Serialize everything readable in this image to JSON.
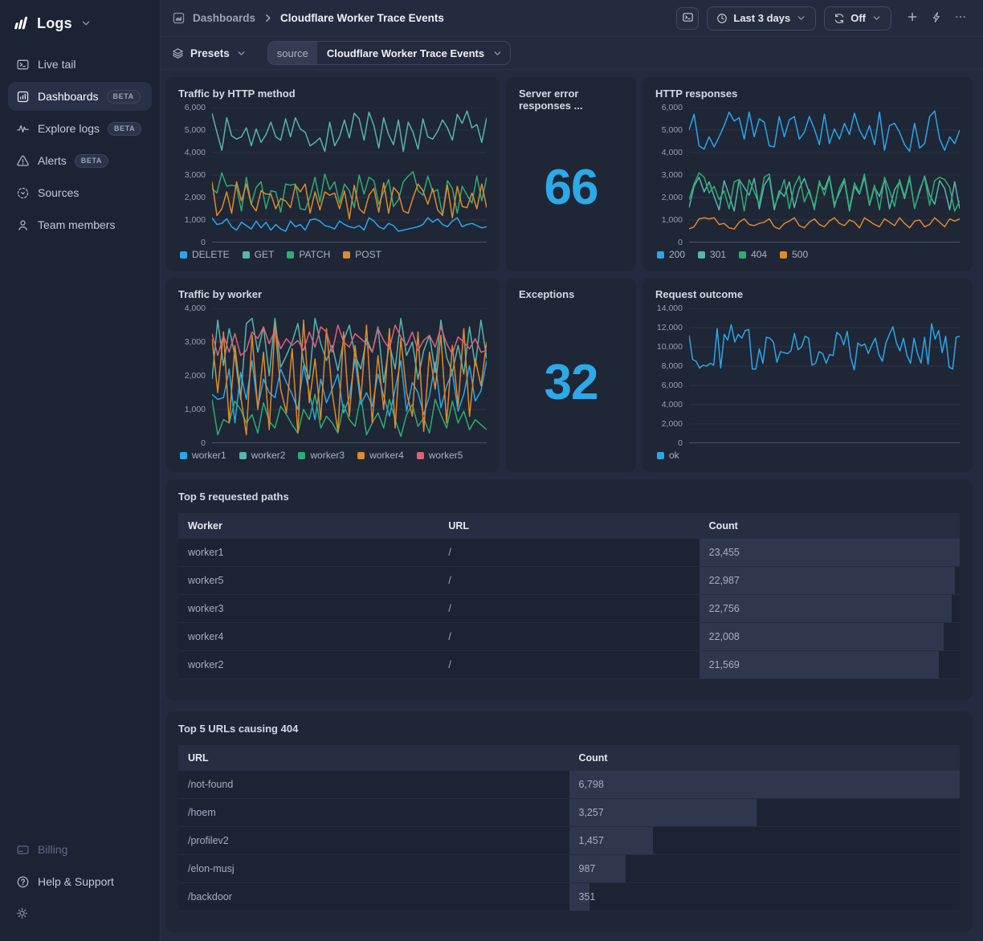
{
  "colors": {
    "accent": "#2da9e8",
    "series_blue": "#2aa7e8",
    "series_teal": "#57b5ac",
    "series_green": "#2eac72",
    "series_orange": "#dd8b2c",
    "series_pink": "#e06078"
  },
  "sidebar": {
    "logo": "Logs",
    "items": [
      {
        "label": "Live tail",
        "badge": ""
      },
      {
        "label": "Dashboards",
        "badge": "BETA"
      },
      {
        "label": "Explore logs",
        "badge": "BETA"
      },
      {
        "label": "Alerts",
        "badge": "BETA"
      },
      {
        "label": "Sources",
        "badge": ""
      },
      {
        "label": "Team members",
        "badge": ""
      }
    ],
    "footer": [
      {
        "label": "Billing"
      },
      {
        "label": "Help & Support"
      }
    ]
  },
  "topbar": {
    "breadcrumb_section": "Dashboards",
    "breadcrumb_page": "Cloudflare Worker Trace Events",
    "time_range": "Last 3 days",
    "refresh": "Off"
  },
  "filters": {
    "presets": "Presets",
    "source_label": "source",
    "source_value": "Cloudflare Worker Trace Events"
  },
  "chart_data": [
    {
      "id": "traffic-by-http-method",
      "title": "Traffic by HTTP method",
      "type": "line",
      "ylim": [
        0,
        6000
      ],
      "yticks": [
        0,
        1000,
        2000,
        3000,
        4000,
        5000,
        6000
      ],
      "series": [
        {
          "name": "DELETE",
          "color": "#2aa7e8",
          "values": [
            1100,
            800,
            850,
            1050,
            700,
            550,
            900,
            750,
            600,
            950,
            650,
            900,
            550,
            800,
            600,
            500,
            950,
            700,
            800,
            550,
            1000,
            1050,
            950,
            750,
            700,
            600,
            950,
            800,
            700,
            650,
            750,
            550,
            1100,
            950,
            700,
            600,
            850,
            750,
            500,
            550,
            600,
            650,
            700,
            800,
            1100,
            900,
            1050,
            800,
            700,
            950,
            1100,
            700,
            800,
            850,
            750,
            650,
            700
          ]
        },
        {
          "name": "GET",
          "color": "#57b5ac",
          "values": [
            5750,
            4900,
            4100,
            5550,
            4750,
            4600,
            4700,
            5100,
            4300,
            5050,
            4450,
            4800,
            5350,
            4700,
            4550,
            5500,
            4700,
            5550,
            5050,
            4900,
            4300,
            4450,
            4650,
            4050,
            5350,
            4300,
            4700,
            5450,
            4650,
            5750,
            5500,
            4550,
            5800,
            5200,
            4200,
            5550,
            4800,
            4350,
            5450,
            4050,
            5350,
            4900,
            4150,
            5500,
            4700,
            4600,
            4950,
            5450,
            5100,
            4550,
            5700,
            5300,
            5850,
            5100,
            5250,
            4450,
            5550
          ]
        },
        {
          "name": "PATCH",
          "color": "#2eac72",
          "values": [
            2400,
            2200,
            3100,
            2500,
            2550,
            2500,
            1400,
            2900,
            1700,
            2450,
            2700,
            1500,
            2300,
            2250,
            1350,
            2600,
            2550,
            2600,
            1500,
            1450,
            2050,
            2900,
            1800,
            3050,
            2350,
            2700,
            1750,
            2600,
            2300,
            1550,
            3000,
            2150,
            2900,
            2750,
            1700,
            2250,
            2800,
            1600,
            1900,
            2700,
            2950,
            3150,
            2300,
            2100,
            2950,
            2250,
            2350,
            1200,
            2750,
            2400,
            1300,
            2500,
            2100,
            1750,
            2950,
            1850,
            2900
          ]
        },
        {
          "name": "POST",
          "color": "#dd8b2c",
          "values": [
            2700,
            1200,
            1500,
            2250,
            1300,
            2700,
            1850,
            2600,
            1700,
            1400,
            2300,
            2150,
            2150,
            1500,
            1950,
            1850,
            1550,
            2550,
            2250,
            2600,
            1300,
            2250,
            1450,
            2250,
            2100,
            2200,
            1500,
            2300,
            1050,
            2550,
            1500,
            1300,
            2100,
            2400,
            1350,
            2650,
            1300,
            2450,
            2200,
            1400,
            1300,
            2000,
            2600,
            2300,
            1700,
            2400,
            1450,
            1200,
            2550,
            1100,
            2500,
            1600,
            1550,
            2200,
            1500,
            2600,
            1550
          ]
        }
      ]
    },
    {
      "id": "server-error-responses",
      "title": "Server error responses ...",
      "type": "stat",
      "value": "66"
    },
    {
      "id": "http-responses",
      "title": "HTTP responses",
      "type": "line",
      "ylim": [
        0,
        6000
      ],
      "yticks": [
        0,
        1000,
        2000,
        3000,
        4000,
        5000,
        6000
      ],
      "series": [
        {
          "name": "200",
          "color": "#2aa7e8",
          "values": [
            5000,
            5700,
            4300,
            4150,
            4700,
            4250,
            4700,
            5200,
            5800,
            5400,
            5550,
            4600,
            5800,
            4700,
            5500,
            5350,
            4300,
            4250,
            5600,
            4700,
            5450,
            5600,
            4600,
            4900,
            5600,
            5050,
            4350,
            5700,
            4400,
            5050,
            4600,
            5300,
            4800,
            5750,
            5000,
            4600,
            5200,
            4350,
            5800,
            4100,
            5200,
            5300,
            4900,
            4350,
            4050,
            5300,
            4200,
            4400,
            5600,
            5850,
            4600,
            4100,
            4700,
            4400,
            5000
          ]
        },
        {
          "name": "301",
          "color": "#57b5ac",
          "values": [
            1550,
            2500,
            2900,
            2250,
            2700,
            2050,
            1450,
            2750,
            2100,
            1400,
            2800,
            2450,
            2100,
            2850,
            1500,
            2550,
            2900,
            1450,
            2300,
            2050,
            2700,
            1550,
            2400,
            2850,
            2200,
            1600,
            2600,
            2350,
            2950,
            1700,
            2200,
            2750,
            1400,
            2500,
            2150,
            2900,
            1650,
            2450,
            2050,
            2800,
            1500,
            2350,
            2700,
            1950,
            2850,
            1550,
            2250,
            2950,
            2100,
            1700,
            2750,
            2400,
            1450,
            2700,
            1500
          ]
        },
        {
          "name": "404",
          "color": "#2eac72",
          "values": [
            1900,
            2600,
            3100,
            2900,
            2200,
            2500,
            1900,
            2300,
            1500,
            2700,
            2800,
            1400,
            2800,
            2250,
            1700,
            2900,
            3050,
            1600,
            2100,
            2800,
            1500,
            2500,
            2950,
            1800,
            2350,
            1450,
            2750,
            2100,
            2900,
            1550,
            2400,
            2850,
            1500,
            2650,
            2200,
            3050,
            1700,
            2550,
            1450,
            2900,
            2300,
            1600,
            2800,
            2050,
            2950,
            1500,
            2350,
            2900,
            1650,
            2750,
            2900,
            2800,
            2450,
            1400,
            1850
          ]
        },
        {
          "name": "500",
          "color": "#dd8b2c",
          "values": [
            600,
            700,
            1050,
            1100,
            1050,
            1100,
            800,
            850,
            650,
            600,
            900,
            1050,
            800,
            750,
            850,
            900,
            1050,
            700,
            600,
            850,
            950,
            1100,
            750,
            650,
            900,
            1050,
            800,
            700,
            950,
            1100,
            850,
            750,
            1000,
            900,
            650,
            1100,
            950,
            800,
            700,
            1050,
            900,
            750,
            1100,
            850,
            650,
            950,
            1000,
            700,
            800,
            1100,
            900,
            700,
            1050,
            950,
            1050
          ]
        }
      ]
    },
    {
      "id": "traffic-by-worker",
      "title": "Traffic by worker",
      "type": "line",
      "ylim": [
        0,
        4000
      ],
      "yticks": [
        0,
        1000,
        2000,
        3000,
        4000
      ],
      "series": [
        {
          "name": "worker1",
          "color": "#2aa7e8",
          "values": [
            1450,
            1300,
            1350,
            2200,
            600,
            2100,
            1300,
            2450,
            1050,
            1900,
            1500,
            1350,
            2200,
            1800,
            1450,
            1000,
            2300,
            1500,
            700,
            1900,
            1200,
            1600,
            2050,
            900,
            1350,
            2500,
            1150,
            1500,
            1100,
            2050,
            1400,
            800,
            1600,
            2450,
            950,
            1800,
            1500,
            850,
            1400,
            2400,
            1050,
            1700,
            2100,
            950,
            1450,
            2300,
            1250,
            1550,
            2450
          ]
        },
        {
          "name": "worker2",
          "color": "#57b5ac",
          "values": [
            1900,
            3650,
            2300,
            3400,
            2600,
            1300,
            3550,
            3700,
            2700,
            3450,
            2000,
            3700,
            2250,
            2600,
            3000,
            3550,
            2400,
            1900,
            3700,
            2950,
            2450,
            2900,
            2150,
            3050,
            3500,
            2600,
            2200,
            3100,
            2700,
            3450,
            1800,
            2950,
            2200,
            3700,
            2600,
            3000,
            1900,
            2750,
            3200,
            2100,
            3650,
            2550,
            2100,
            2900,
            2050,
            3450,
            2300,
            3650,
            2500
          ]
        },
        {
          "name": "worker3",
          "color": "#2eac72",
          "values": [
            1300,
            250,
            700,
            600,
            1250,
            1000,
            600,
            850,
            300,
            1200,
            650,
            450,
            1100,
            850,
            550,
            300,
            1000,
            700,
            1450,
            450,
            800,
            600,
            300,
            1150,
            700,
            500,
            1400,
            250,
            600,
            900,
            450,
            1300,
            700,
            200,
            850,
            1150,
            500,
            750,
            300,
            1300,
            850,
            450,
            1250,
            600,
            950,
            400,
            700,
            550,
            400
          ]
        },
        {
          "name": "worker4",
          "color": "#dd8b2c",
          "values": [
            3100,
            1500,
            3300,
            600,
            2900,
            1400,
            250,
            3200,
            1000,
            2700,
            400,
            3500,
            1600,
            900,
            2800,
            300,
            3650,
            1200,
            2500,
            700,
            3400,
            1500,
            350,
            3300,
            800,
            2900,
            1300,
            3500,
            600,
            2600,
            1000,
            3400,
            450,
            3100,
            1500,
            800,
            3300,
            350,
            2700,
            1600,
            3200,
            600,
            2900,
            1100,
            3400,
            800,
            2500,
            1700,
            3000
          ]
        },
        {
          "name": "worker5",
          "color": "#e06078",
          "values": [
            3250,
            2600,
            3200,
            2700,
            3250,
            2600,
            2750,
            3300,
            3100,
            3450,
            2950,
            3350,
            2800,
            3100,
            2900,
            3050,
            2750,
            3300,
            2850,
            3450,
            3300,
            2700,
            3500,
            3000,
            2850,
            3250,
            3100,
            2950,
            2700,
            3400,
            3050,
            2800,
            3500,
            3150,
            2900,
            3300,
            2750,
            3050,
            3200,
            2850,
            3450,
            2950,
            2650,
            3150,
            3000,
            2800,
            3100,
            2700,
            2750
          ]
        }
      ]
    },
    {
      "id": "exceptions",
      "title": "Exceptions",
      "type": "stat",
      "value": "32"
    },
    {
      "id": "request-outcome",
      "title": "Request outcome",
      "type": "line",
      "ylim": [
        0,
        14000
      ],
      "yticks": [
        0,
        2000,
        4000,
        6000,
        8000,
        10000,
        12000,
        14000
      ],
      "series": [
        {
          "name": "ok",
          "color": "#2aa7e8",
          "values": [
            11200,
            8700,
            8500,
            7800,
            8100,
            8000,
            8300,
            8100,
            11900,
            7800,
            11300,
            10700,
            12300,
            10500,
            11300,
            10900,
            11700,
            11800,
            7700,
            7700,
            9800,
            8300,
            11000,
            10900,
            10500,
            8400,
            9500,
            9400,
            9300,
            9600,
            11400,
            9700,
            10000,
            11100,
            10900,
            8100,
            8300,
            9500,
            9300,
            8300,
            9200,
            9100,
            11500,
            11200,
            10200,
            11600,
            8900,
            7600,
            10400,
            10100,
            10300,
            9300,
            10200,
            10900,
            9200,
            8500,
            10400,
            11300,
            12100,
            10400,
            9600,
            10900,
            9100,
            8300,
            10900,
            9300,
            8300,
            11000,
            8200,
            12400,
            10800,
            11700,
            9400,
            11100,
            7900,
            7700,
            11000,
            11100
          ]
        }
      ]
    }
  ],
  "tables": [
    {
      "title": "Top 5 requested paths",
      "columns": [
        "Worker",
        "URL",
        "Count"
      ],
      "rows": [
        {
          "cells": [
            "worker1",
            "/"
          ],
          "count": 23455
        },
        {
          "cells": [
            "worker5",
            "/"
          ],
          "count": 22987
        },
        {
          "cells": [
            "worker3",
            "/"
          ],
          "count": 22756
        },
        {
          "cells": [
            "worker4",
            "/"
          ],
          "count": 22008
        },
        {
          "cells": [
            "worker2",
            "/"
          ],
          "count": 21569
        }
      ]
    },
    {
      "title": "Top 5 URLs causing 404",
      "columns": [
        "URL",
        "Count"
      ],
      "rows": [
        {
          "cells": [
            "/not-found"
          ],
          "count": 6798
        },
        {
          "cells": [
            "/hoem"
          ],
          "count": 3257
        },
        {
          "cells": [
            "/profilev2"
          ],
          "count": 1457
        },
        {
          "cells": [
            "/elon-musj"
          ],
          "count": 987
        },
        {
          "cells": [
            "/backdoor"
          ],
          "count": 351
        }
      ]
    }
  ]
}
